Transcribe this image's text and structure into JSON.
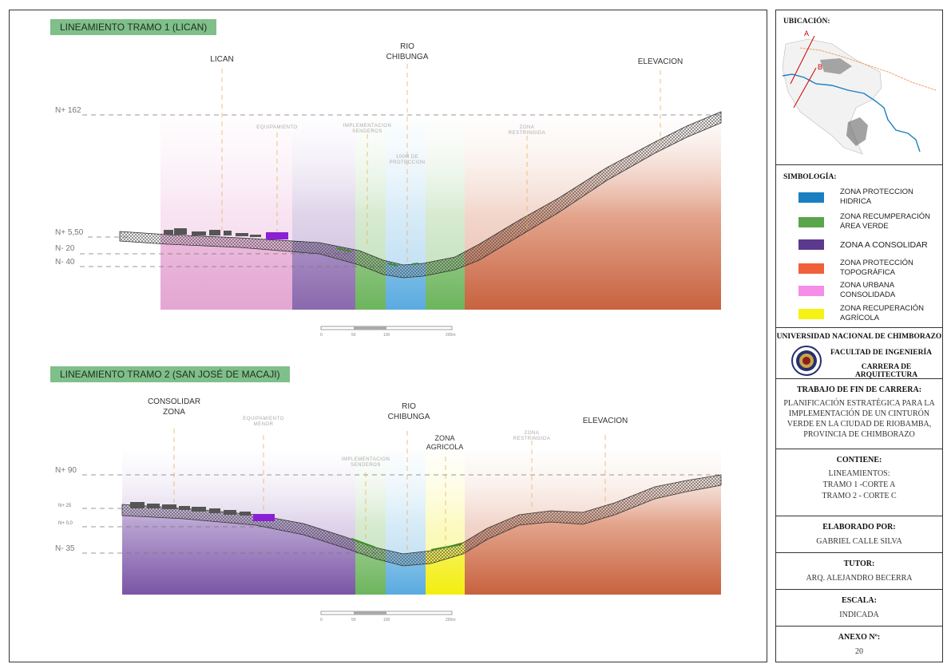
{
  "section1": {
    "title": "LINEAMIENTO TRAMO 1 (LICAN)",
    "place_labels": [
      "LICAN",
      "RIO\nCHIBUNGA",
      "ELEVACION"
    ],
    "zone_labels": [
      "EQUIPAMIENTO",
      "IMPLEMENTACION\nSENDEROS",
      "100M DE\nPROTECCION",
      "ZONA\nRESTRINGIDA"
    ],
    "levels": [
      "N+ 162",
      "N+ 5,50",
      "N- 20",
      "N- 40"
    ],
    "scale_ticks": [
      "0",
      "50",
      "100",
      "200m"
    ]
  },
  "section2": {
    "title": "LINEAMIENTO TRAMO 2 (SAN JOSÉ DE MACAJI)",
    "place_labels": [
      "CONSOLIDAR\nZONA",
      "RIO\nCHIBUNGA",
      "ZONA\nAGRICOLA",
      "ELEVACION"
    ],
    "zone_labels": [
      "EQUIPAMIENTO\nMENOR",
      "IMPLEMENTACION\nSENDEROS",
      "ZONA\nRESTRINGIDA"
    ],
    "levels": [
      "N+ 90",
      "N+ 25",
      "N+ 0,0",
      "N- 35"
    ],
    "scale_ticks": [
      "0",
      "50",
      "100",
      "200m"
    ]
  },
  "map": {
    "heading": "UBICACIÓN:",
    "markers": [
      "A",
      "B"
    ]
  },
  "legend": {
    "heading": "SIMBOLOGÍA:",
    "items": [
      {
        "label": "ZONA PROTECCION\nHIDRICA",
        "color": "#1a7fc0"
      },
      {
        "label": "ZONA RECUMPERACIÓN\nÁREA VERDE",
        "color": "#5aa64b"
      },
      {
        "label": "ZONA A CONSOLIDAR",
        "color": "#5b3a8e"
      },
      {
        "label": "ZONA PROTECCIÓN\nTOPOGRÁFICA",
        "color": "#f0603a"
      },
      {
        "label": "ZONA URBANA\nCONSOLIDADA",
        "color": "#f58ee6"
      },
      {
        "label": "ZONA RECUPERACIÓN\nAGRÍCOLA",
        "color": "#f5f214"
      }
    ]
  },
  "institution": {
    "university": "UNIVERSIDAD NACIONAL DE CHIMBORAZO",
    "faculty": "FACULTAD DE INGENIERÍA",
    "career": "CARRERA DE ARQUITECTURA"
  },
  "project": {
    "heading": "TRABAJO DE FIN DE CARRERA:",
    "text": "PLANIFICACIÓN ESTRATÉGICA PARA LA IMPLEMENTACIÓN DE UN CINTURÓN VERDE EN LA CIUDAD DE RIOBAMBA, PROVINCIA DE CHIMBORAZO"
  },
  "contents": {
    "heading": "CONTIENE:",
    "lines": [
      "LINEAMIENTOS:",
      "TRAMO 1 -CORTE A",
      "TRAMO 2 - CORTE C"
    ]
  },
  "author": {
    "heading": "ELABORADO POR:",
    "name": "GABRIEL CALLE SILVA"
  },
  "tutor": {
    "heading": "TUTOR:",
    "name": "ARQ. ALEJANDRO BECERRA"
  },
  "scale": {
    "heading": "ESCALA:",
    "value": "INDICADA"
  },
  "annex": {
    "heading": "ANEXO Nº:",
    "value": "20"
  }
}
